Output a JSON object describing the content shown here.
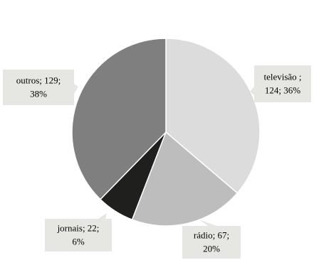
{
  "chart_data": {
    "type": "pie",
    "title": "",
    "start_angle_deg": 0,
    "direction": "clockwise",
    "slices": [
      {
        "category": "televisão",
        "value": 124,
        "percent": "36%",
        "color": "#dcdcdc",
        "label_lines": [
          "televisão ;",
          "124; 36%"
        ]
      },
      {
        "category": "rádio",
        "value": 67,
        "percent": "20%",
        "color": "#bdbdbd",
        "label_lines": [
          "rádio; 67;",
          "20%"
        ]
      },
      {
        "category": "jornais",
        "value": 22,
        "percent": "6%",
        "color": "#1f1f1d",
        "label_lines": [
          "jornais; 22;",
          "6%"
        ]
      },
      {
        "category": "outros",
        "value": 129,
        "percent": "38%",
        "color": "#7f7f7f",
        "label_lines": [
          "outros; 129;",
          "38%"
        ]
      }
    ],
    "callout_color": "#e6e6e2",
    "slice_border_color": "#ffffff"
  }
}
